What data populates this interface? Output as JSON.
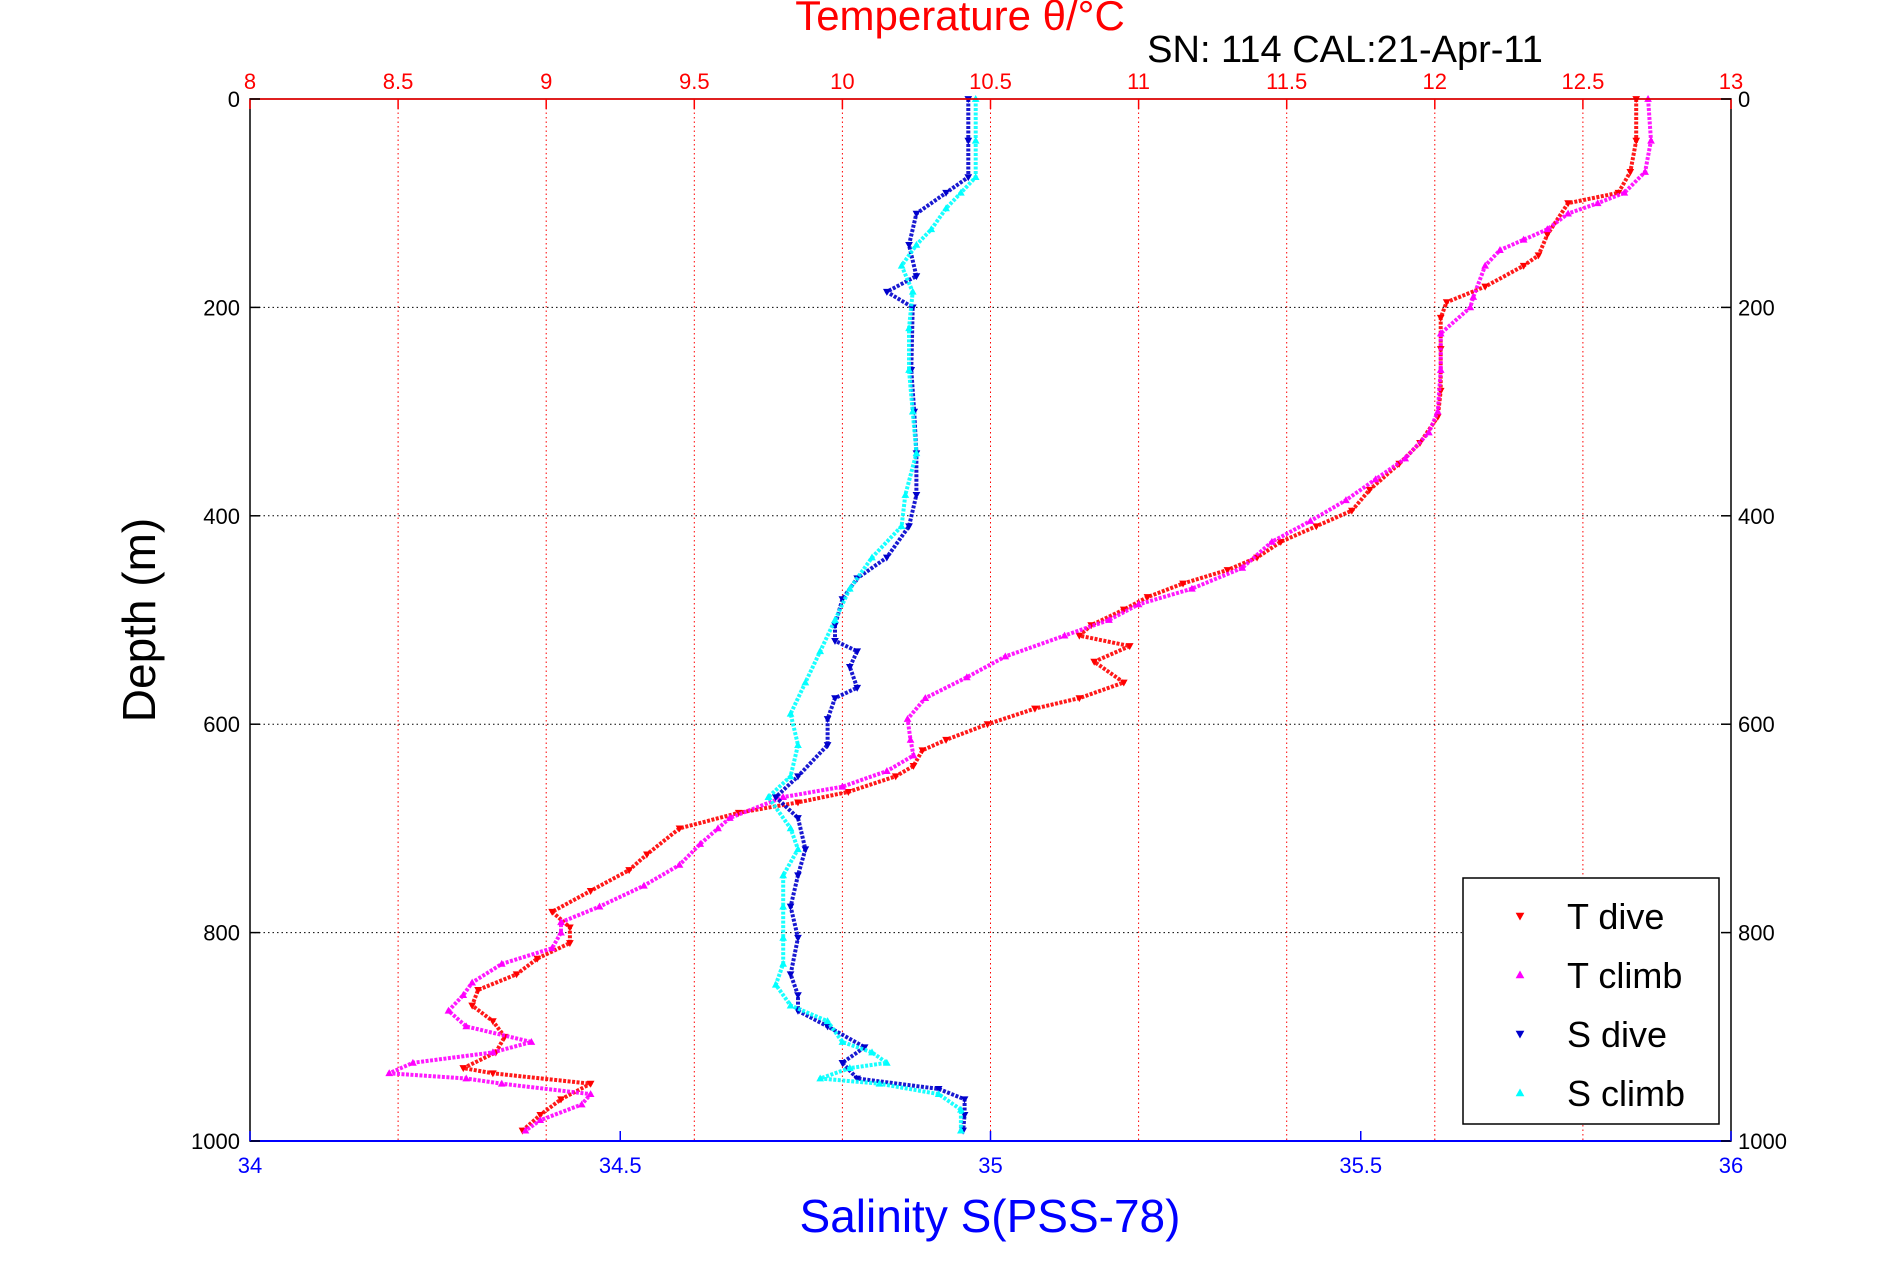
{
  "chart_data": {
    "type": "scatter",
    "title": "Temperature θ/°C",
    "subtitle": "SN: 114  CAL:21-Apr-11",
    "ylabel": "Depth (m)",
    "xlabel": "Salinity S(PSS-78)",
    "grid": true,
    "legend_position": "bottom-right",
    "depth_axis": {
      "range": [
        0,
        1000
      ],
      "reversed": true,
      "ticks": [
        0,
        200,
        400,
        600,
        800,
        1000
      ]
    },
    "temperature_axis": {
      "position": "top",
      "range": [
        8,
        13
      ],
      "ticks": [
        "8",
        "8.5",
        "9",
        "9.5",
        "10",
        "10.5",
        "11",
        "11.5",
        "12",
        "12.5",
        "13"
      ],
      "color": "#ff0000"
    },
    "salinity_axis": {
      "position": "bottom",
      "range": [
        34,
        36
      ],
      "ticks": [
        "34",
        "34.5",
        "35",
        "35.5",
        "36"
      ],
      "color": "#0000ff"
    },
    "series": [
      {
        "name": "T dive",
        "axis": "temperature",
        "color": "#ff0000",
        "marker": "triangle-down",
        "points": [
          [
            12.68,
            0
          ],
          [
            12.68,
            40
          ],
          [
            12.66,
            70
          ],
          [
            12.62,
            90
          ],
          [
            12.45,
            100
          ],
          [
            12.38,
            130
          ],
          [
            12.35,
            150
          ],
          [
            12.3,
            160
          ],
          [
            12.17,
            180
          ],
          [
            12.04,
            195
          ],
          [
            12.02,
            210
          ],
          [
            12.02,
            240
          ],
          [
            12.02,
            280
          ],
          [
            12.01,
            305
          ],
          [
            11.95,
            330
          ],
          [
            11.88,
            350
          ],
          [
            11.78,
            375
          ],
          [
            11.72,
            395
          ],
          [
            11.6,
            410
          ],
          [
            11.48,
            425
          ],
          [
            11.4,
            440
          ],
          [
            11.3,
            452
          ],
          [
            11.15,
            465
          ],
          [
            11.03,
            478
          ],
          [
            10.95,
            490
          ],
          [
            10.84,
            505
          ],
          [
            10.8,
            515
          ],
          [
            10.97,
            525
          ],
          [
            10.85,
            540
          ],
          [
            10.95,
            560
          ],
          [
            10.8,
            575
          ],
          [
            10.65,
            585
          ],
          [
            10.49,
            600
          ],
          [
            10.35,
            615
          ],
          [
            10.27,
            625
          ],
          [
            10.24,
            640
          ],
          [
            10.18,
            650
          ],
          [
            10.02,
            665
          ],
          [
            9.85,
            675
          ],
          [
            9.65,
            685
          ],
          [
            9.45,
            700
          ],
          [
            9.34,
            725
          ],
          [
            9.28,
            740
          ],
          [
            9.15,
            760
          ],
          [
            9.02,
            780
          ],
          [
            9.08,
            795
          ],
          [
            9.08,
            810
          ],
          [
            8.97,
            825
          ],
          [
            8.9,
            840
          ],
          [
            8.77,
            855
          ],
          [
            8.75,
            870
          ],
          [
            8.82,
            885
          ],
          [
            8.86,
            900
          ],
          [
            8.83,
            915
          ],
          [
            8.72,
            930
          ],
          [
            8.82,
            935
          ],
          [
            9.15,
            945
          ],
          [
            9.05,
            960
          ],
          [
            8.98,
            975
          ],
          [
            8.92,
            990
          ]
        ]
      },
      {
        "name": "T climb",
        "axis": "temperature",
        "color": "#ff00ff",
        "marker": "triangle-up",
        "points": [
          [
            12.72,
            0
          ],
          [
            12.73,
            40
          ],
          [
            12.71,
            70
          ],
          [
            12.64,
            90
          ],
          [
            12.55,
            100
          ],
          [
            12.45,
            110
          ],
          [
            12.38,
            125
          ],
          [
            12.3,
            135
          ],
          [
            12.22,
            145
          ],
          [
            12.17,
            160
          ],
          [
            12.13,
            190
          ],
          [
            12.12,
            200
          ],
          [
            12.02,
            225
          ],
          [
            12.02,
            260
          ],
          [
            12.01,
            300
          ],
          [
            11.98,
            320
          ],
          [
            11.9,
            345
          ],
          [
            11.8,
            365
          ],
          [
            11.7,
            385
          ],
          [
            11.58,
            405
          ],
          [
            11.45,
            425
          ],
          [
            11.35,
            450
          ],
          [
            11.18,
            470
          ],
          [
            11.0,
            485
          ],
          [
            10.9,
            500
          ],
          [
            10.75,
            515
          ],
          [
            10.55,
            535
          ],
          [
            10.42,
            555
          ],
          [
            10.28,
            575
          ],
          [
            10.22,
            595
          ],
          [
            10.23,
            615
          ],
          [
            10.24,
            630
          ],
          [
            10.15,
            645
          ],
          [
            10.0,
            660
          ],
          [
            9.8,
            670
          ],
          [
            9.62,
            690
          ],
          [
            9.58,
            700
          ],
          [
            9.52,
            715
          ],
          [
            9.45,
            735
          ],
          [
            9.33,
            755
          ],
          [
            9.18,
            775
          ],
          [
            9.05,
            790
          ],
          [
            9.05,
            800
          ],
          [
            9.02,
            815
          ],
          [
            8.85,
            830
          ],
          [
            8.75,
            848
          ],
          [
            8.72,
            860
          ],
          [
            8.67,
            875
          ],
          [
            8.73,
            890
          ],
          [
            8.95,
            905
          ],
          [
            8.82,
            915
          ],
          [
            8.55,
            925
          ],
          [
            8.47,
            935
          ],
          [
            8.73,
            940
          ],
          [
            8.85,
            945
          ],
          [
            9.15,
            955
          ],
          [
            9.12,
            965
          ],
          [
            8.98,
            980
          ],
          [
            8.93,
            990
          ]
        ]
      },
      {
        "name": "S dive",
        "axis": "salinity",
        "color": "#0000cc",
        "marker": "triangle-down",
        "points": [
          [
            34.97,
            0
          ],
          [
            34.97,
            40
          ],
          [
            34.97,
            75
          ],
          [
            34.94,
            90
          ],
          [
            34.9,
            110
          ],
          [
            34.89,
            140
          ],
          [
            34.9,
            170
          ],
          [
            34.86,
            185
          ],
          [
            34.895,
            200
          ],
          [
            34.893,
            260
          ],
          [
            34.897,
            300
          ],
          [
            34.9,
            340
          ],
          [
            34.9,
            380
          ],
          [
            34.89,
            410
          ],
          [
            34.86,
            440
          ],
          [
            34.82,
            460
          ],
          [
            34.8,
            480
          ],
          [
            34.79,
            505
          ],
          [
            34.79,
            520
          ],
          [
            34.82,
            530
          ],
          [
            34.81,
            545
          ],
          [
            34.82,
            565
          ],
          [
            34.79,
            575
          ],
          [
            34.78,
            595
          ],
          [
            34.78,
            620
          ],
          [
            34.74,
            650
          ],
          [
            34.71,
            670
          ],
          [
            34.74,
            690
          ],
          [
            34.75,
            720
          ],
          [
            34.74,
            745
          ],
          [
            34.73,
            775
          ],
          [
            34.74,
            805
          ],
          [
            34.73,
            840
          ],
          [
            34.74,
            860
          ],
          [
            34.74,
            875
          ],
          [
            34.78,
            890
          ],
          [
            34.83,
            910
          ],
          [
            34.8,
            925
          ],
          [
            34.82,
            940
          ],
          [
            34.93,
            950
          ],
          [
            34.965,
            960
          ],
          [
            34.965,
            975
          ],
          [
            34.963,
            990
          ]
        ]
      },
      {
        "name": "S climb",
        "axis": "salinity",
        "color": "#00ffff",
        "marker": "triangle-up",
        "points": [
          [
            34.98,
            0
          ],
          [
            34.98,
            40
          ],
          [
            34.98,
            75
          ],
          [
            34.96,
            90
          ],
          [
            34.94,
            105
          ],
          [
            34.92,
            125
          ],
          [
            34.9,
            140
          ],
          [
            34.88,
            160
          ],
          [
            34.895,
            185
          ],
          [
            34.89,
            220
          ],
          [
            34.89,
            260
          ],
          [
            34.895,
            300
          ],
          [
            34.9,
            340
          ],
          [
            34.885,
            380
          ],
          [
            34.88,
            410
          ],
          [
            34.84,
            440
          ],
          [
            34.81,
            470
          ],
          [
            34.79,
            500
          ],
          [
            34.77,
            530
          ],
          [
            34.75,
            560
          ],
          [
            34.73,
            590
          ],
          [
            34.74,
            620
          ],
          [
            34.73,
            650
          ],
          [
            34.7,
            670
          ],
          [
            34.73,
            700
          ],
          [
            34.74,
            720
          ],
          [
            34.72,
            745
          ],
          [
            34.72,
            775
          ],
          [
            34.72,
            805
          ],
          [
            34.72,
            830
          ],
          [
            34.71,
            850
          ],
          [
            34.73,
            870
          ],
          [
            34.78,
            885
          ],
          [
            34.8,
            905
          ],
          [
            34.84,
            915
          ],
          [
            34.86,
            925
          ],
          [
            34.81,
            930
          ],
          [
            34.77,
            940
          ],
          [
            34.85,
            945
          ],
          [
            34.93,
            955
          ],
          [
            34.96,
            970
          ],
          [
            34.96,
            990
          ]
        ]
      }
    ]
  }
}
